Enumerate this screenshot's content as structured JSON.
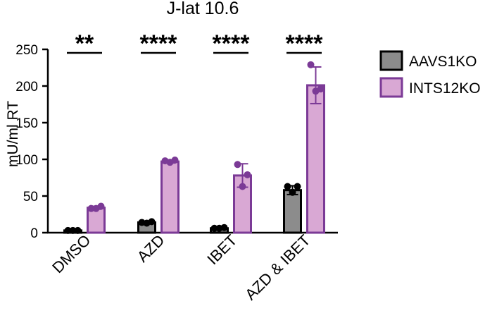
{
  "chart_data": {
    "type": "bar",
    "title": "J-lat 10.6",
    "xlabel": "",
    "ylabel": "mU/ml RT",
    "ylim": [
      0,
      250
    ],
    "yticks": [
      0,
      50,
      100,
      150,
      200,
      250
    ],
    "categories": [
      "DMSO",
      "AZD",
      "IBET",
      "AZD & IBET"
    ],
    "grid": false,
    "legend_position": "right",
    "series": [
      {
        "name": "AAVS1KO",
        "color": "#8c8c8c",
        "values": [
          3,
          14,
          6,
          58
        ],
        "sd": [
          0.5,
          1.5,
          1,
          6
        ],
        "points": [
          [
            3,
            3,
            3
          ],
          [
            14,
            15,
            13
          ],
          [
            6,
            7,
            6
          ],
          [
            63,
            63,
            55
          ]
        ]
      },
      {
        "name": "INTS12KO",
        "color": "#d9a8d4",
        "edge_color": "#7b3a96",
        "values": [
          34,
          97,
          78,
          201
        ],
        "sd": [
          2,
          2,
          16,
          25
        ],
        "points": [
          [
            33,
            36,
            33
          ],
          [
            98,
            99,
            96
          ],
          [
            93,
            79,
            63
          ],
          [
            229,
            196,
            193
          ]
        ]
      }
    ],
    "significance": [
      "**",
      "****",
      "****",
      "****"
    ]
  }
}
